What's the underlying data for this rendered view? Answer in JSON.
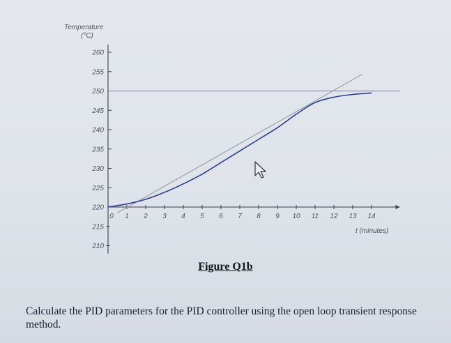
{
  "figure_caption": "Figure Q1b",
  "question_text": "Calculate the PID parameters for the PID controller using the open loop transient response method.",
  "chart_data": {
    "type": "line",
    "ylabel": "Temperature (°C)",
    "xlabel": "t (minutes)",
    "x_ticks": [
      0,
      1,
      2,
      3,
      4,
      5,
      6,
      7,
      8,
      9,
      10,
      11,
      12,
      13,
      14
    ],
    "y_ticks": [
      210,
      215,
      220,
      225,
      230,
      235,
      240,
      245,
      250,
      255,
      260
    ],
    "xlim": [
      0,
      15
    ],
    "ylim": [
      210,
      262
    ],
    "series": [
      {
        "name": "",
        "x": [
          0,
          1,
          2,
          3,
          4,
          5,
          6,
          7,
          8,
          9,
          10,
          11,
          12,
          13,
          14
        ],
        "y": [
          220,
          220.8,
          222,
          223.8,
          226,
          228.5,
          231.5,
          234.5,
          237.5,
          240.5,
          244,
          247,
          248.4,
          249.1,
          249.5
        ],
        "color": "#2a3f8f"
      }
    ],
    "reference_lines": [
      {
        "kind": "horizontal",
        "y": 250,
        "x_range": [
          0,
          15.5
        ],
        "color": "#7a8193"
      },
      {
        "kind": "tangent",
        "points": [
          [
            0.5,
            218.5
          ],
          [
            13.5,
            254.3
          ]
        ],
        "color": "#8d93a3"
      }
    ],
    "grid": false
  },
  "cursor": {
    "icon": "mouse-pointer-icon"
  }
}
